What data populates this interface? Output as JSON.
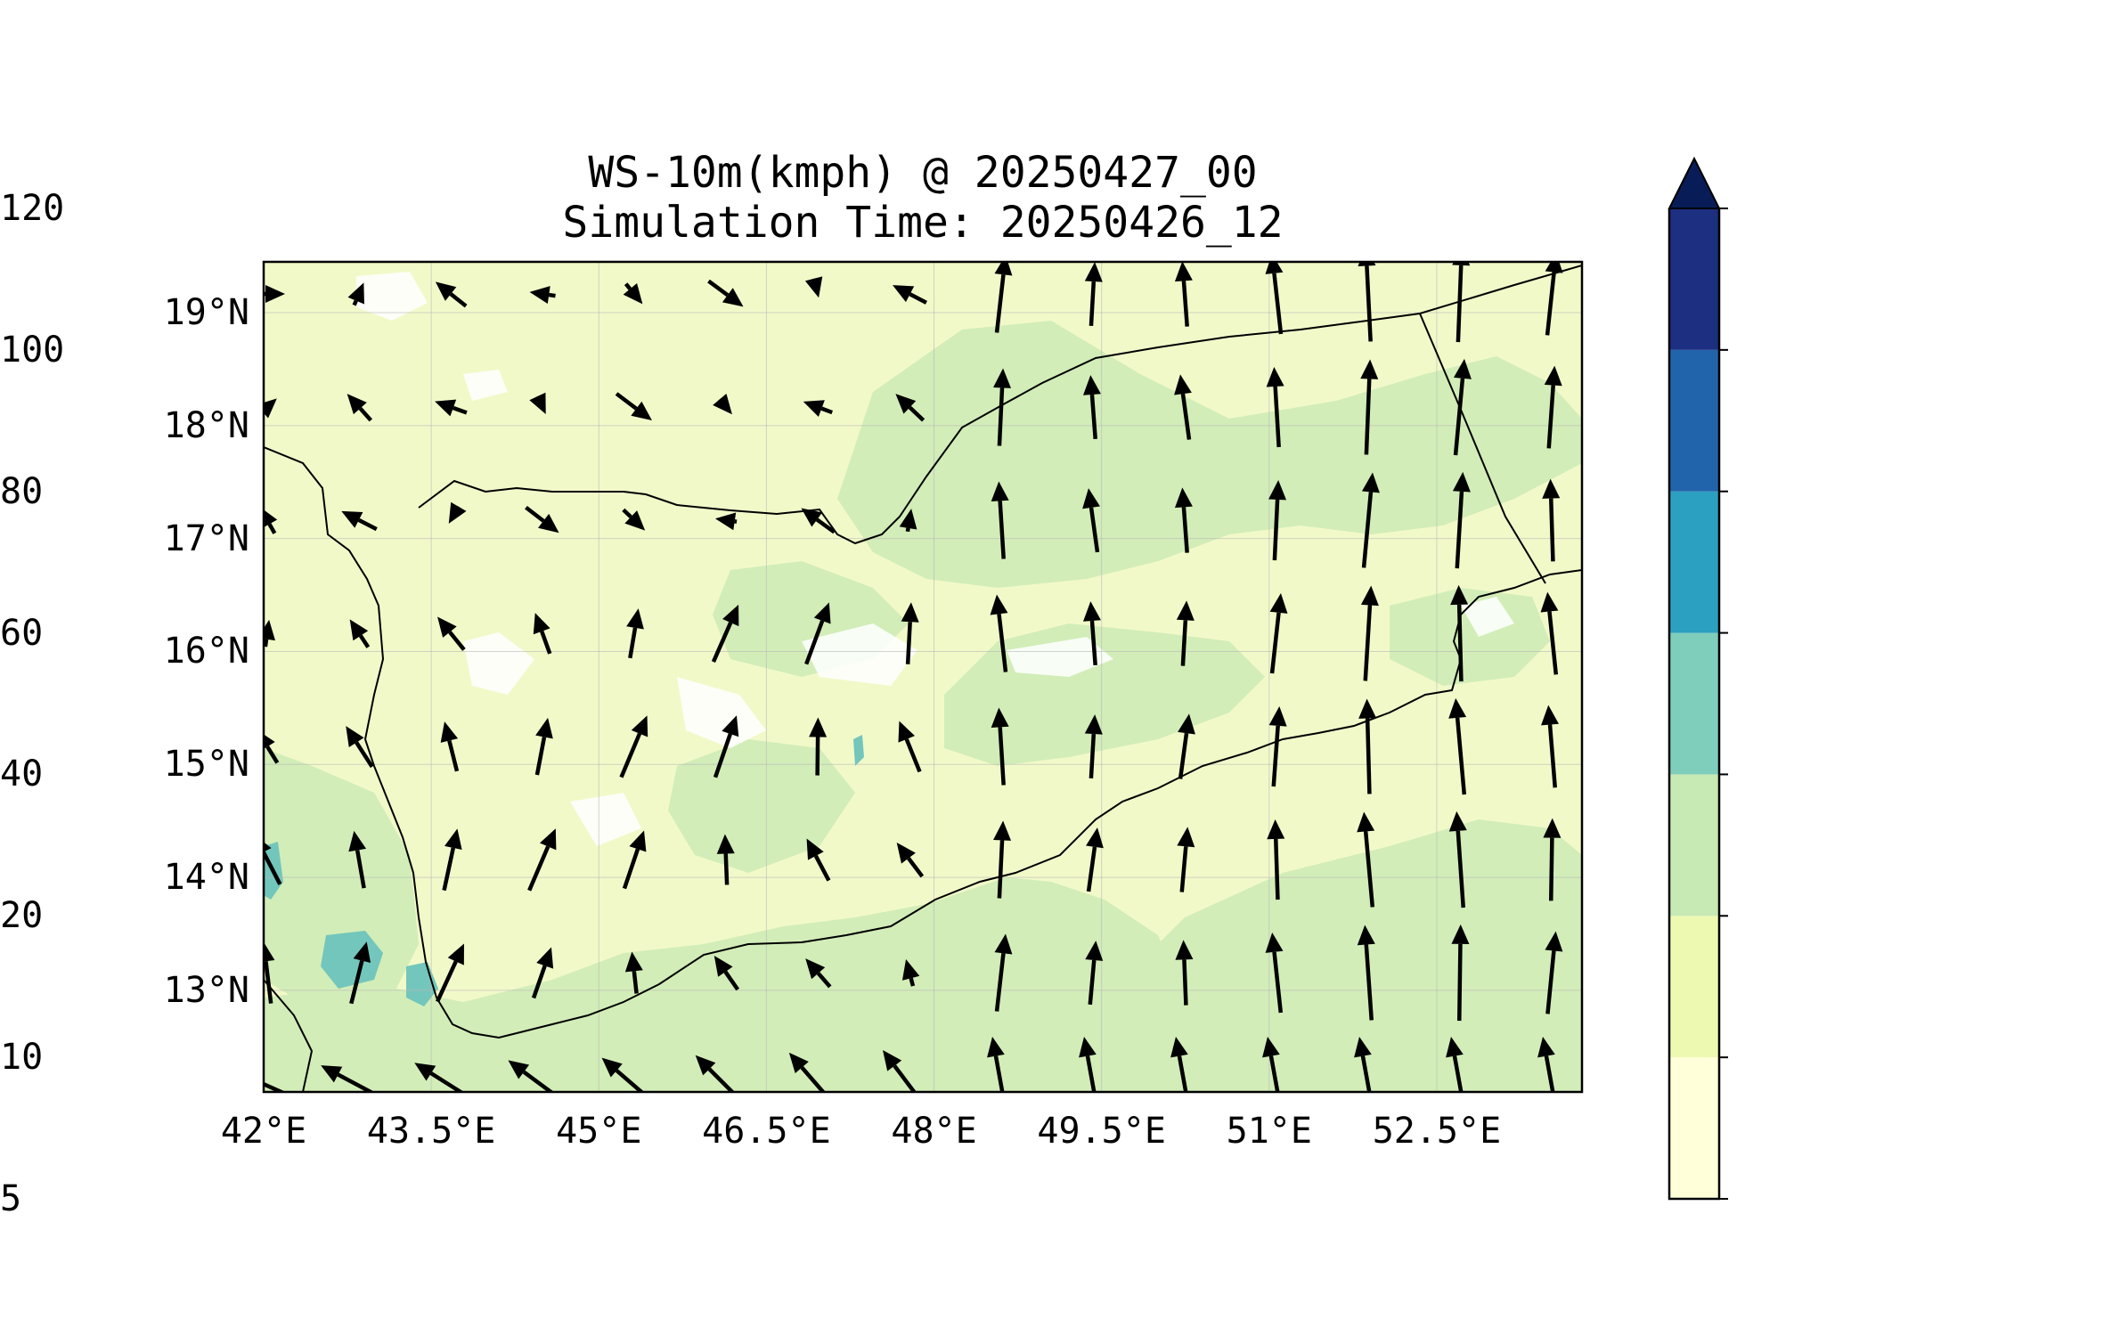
{
  "title": {
    "line1": "WS-10m(kmph) @ 20250427_00",
    "line2": "Simulation Time: 20250426_12"
  },
  "map": {
    "lon_range": [
      42,
      53.8
    ],
    "lat_range": [
      12.1,
      19.45
    ],
    "lon_ticks": [
      {
        "value": 42.0,
        "label": "42°E"
      },
      {
        "value": 43.5,
        "label": "43.5°E"
      },
      {
        "value": 45.0,
        "label": "45°E"
      },
      {
        "value": 46.5,
        "label": "46.5°E"
      },
      {
        "value": 48.0,
        "label": "48°E"
      },
      {
        "value": 49.5,
        "label": "49.5°E"
      },
      {
        "value": 51.0,
        "label": "51°E"
      },
      {
        "value": 52.5,
        "label": "52.5°E"
      }
    ],
    "lat_ticks": [
      {
        "value": 19,
        "label": "19°N"
      },
      {
        "value": 18,
        "label": "18°N"
      },
      {
        "value": 17,
        "label": "17°N"
      },
      {
        "value": 16,
        "label": "16°N"
      },
      {
        "value": 15,
        "label": "15°N"
      },
      {
        "value": 14,
        "label": "14°N"
      },
      {
        "value": 13,
        "label": "13°N"
      }
    ],
    "gridlines": true,
    "colors": {
      "lt10": "#f2f9c9",
      "c20": "#d2edb8",
      "c40": "#73c6bb",
      "coast": "#000000",
      "arrow": "#000000"
    }
  },
  "colorbar": {
    "levels": [
      5,
      10,
      20,
      40,
      60,
      80,
      100,
      120
    ],
    "labels": [
      "5",
      "10",
      "20",
      "40",
      "60",
      "80",
      "100",
      "120"
    ],
    "colors": [
      "#ffffd9",
      "#edf8b1",
      "#c7e9b4",
      "#7fcdbb",
      "#2ca0c0",
      "#2164ab",
      "#1c2f80"
    ],
    "extend_color": "#081d58",
    "extend": "max"
  }
}
